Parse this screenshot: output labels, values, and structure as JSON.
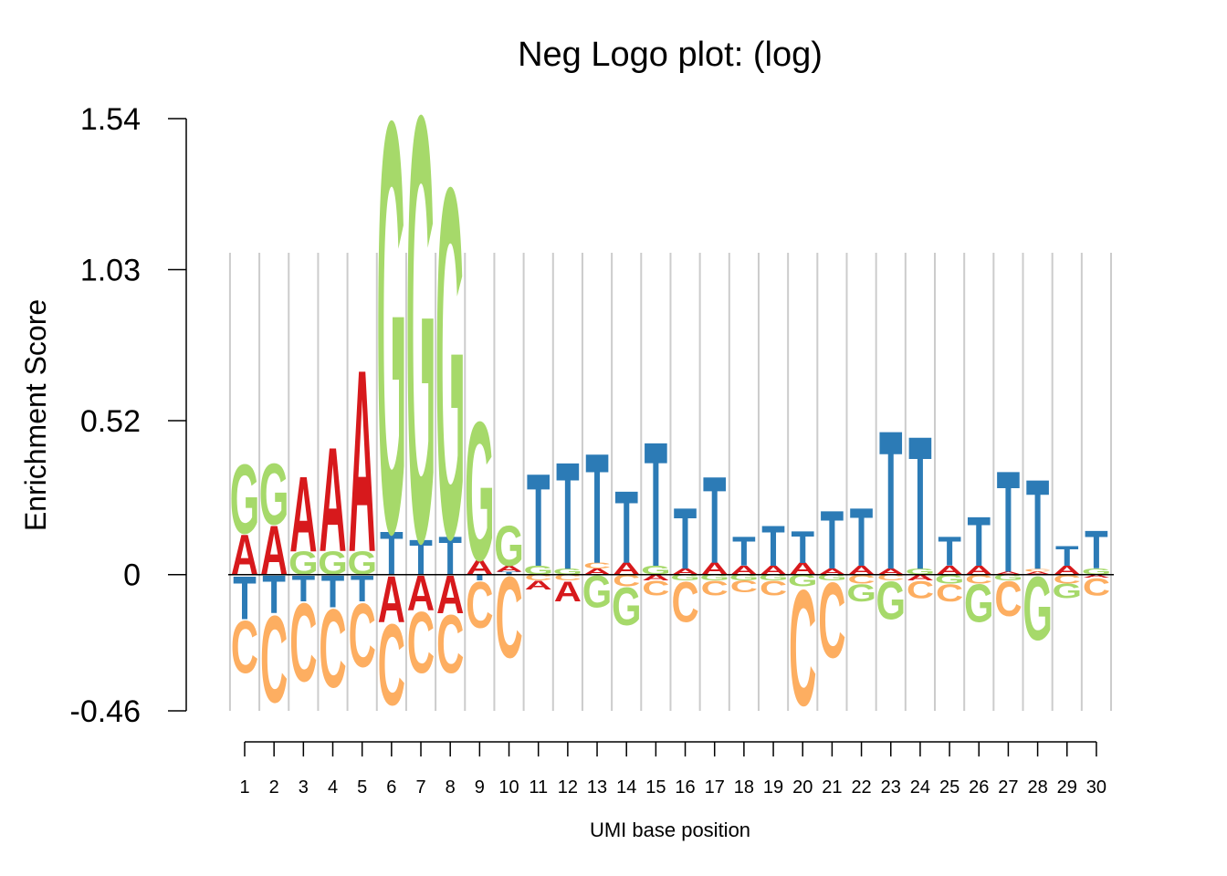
{
  "chart_data": {
    "type": "logo",
    "title": "Neg Logo plot: (log)",
    "xlabel": "UMI base position",
    "ylabel": "Enrichment Score",
    "ylim": [
      -0.46,
      1.54
    ],
    "yticks": [
      "1.54",
      "1.03",
      "0.52",
      "0",
      "-0.46"
    ],
    "ytick_values": [
      1.54,
      1.03,
      0.52,
      0,
      -0.46
    ],
    "grid": true,
    "legend": "none",
    "colors": {
      "A": "#d7191c",
      "C": "#fdae61",
      "G": "#a6d96a",
      "T": "#2c7bb6"
    },
    "positions": [
      "1",
      "2",
      "3",
      "4",
      "5",
      "6",
      "7",
      "8",
      "9",
      "10",
      "11",
      "12",
      "13",
      "14",
      "15",
      "16",
      "17",
      "18",
      "19",
      "20",
      "21",
      "22",
      "23",
      "24",
      "25",
      "26",
      "27",
      "28",
      "29",
      "30"
    ],
    "series": [
      {
        "name": "A",
        "values": [
          0.14,
          0.17,
          0.26,
          0.36,
          0.63,
          -0.16,
          -0.12,
          -0.13,
          0.05,
          0.02,
          -0.03,
          -0.07,
          0.02,
          0.04,
          -0.02,
          0.02,
          0.04,
          0.03,
          0.03,
          0.04,
          0.02,
          0.03,
          0.02,
          -0.02,
          0.03,
          0.03,
          0.01,
          0.01,
          0.03,
          -0.01
        ]
      },
      {
        "name": "C",
        "values": [
          -0.18,
          -0.3,
          -0.27,
          -0.27,
          -0.22,
          -0.28,
          -0.21,
          -0.2,
          -0.16,
          -0.28,
          -0.02,
          -0.02,
          0.02,
          -0.04,
          -0.05,
          -0.14,
          -0.05,
          -0.04,
          -0.05,
          -0.4,
          -0.26,
          -0.03,
          -0.02,
          -0.06,
          -0.06,
          -0.03,
          -0.12,
          0.01,
          -0.03,
          -0.06
        ]
      },
      {
        "name": "G",
        "values": [
          0.24,
          0.21,
          0.08,
          0.08,
          0.08,
          1.42,
          1.47,
          1.21,
          0.48,
          0.14,
          0.03,
          0.02,
          -0.11,
          -0.13,
          0.03,
          -0.02,
          -0.02,
          -0.02,
          -0.02,
          -0.04,
          -0.02,
          -0.06,
          -0.13,
          0.02,
          -0.03,
          -0.13,
          -0.02,
          -0.22,
          -0.05,
          0.02
        ]
      },
      {
        "name": "T",
        "values": [
          -0.15,
          -0.13,
          -0.09,
          -0.11,
          -0.09,
          0.15,
          0.12,
          0.13,
          -0.02,
          0.01,
          0.32,
          0.37,
          0.38,
          0.25,
          0.43,
          0.21,
          0.3,
          0.1,
          0.14,
          0.11,
          0.2,
          0.2,
          0.48,
          0.46,
          0.1,
          0.17,
          0.35,
          0.31,
          0.07,
          0.13
        ]
      }
    ]
  }
}
